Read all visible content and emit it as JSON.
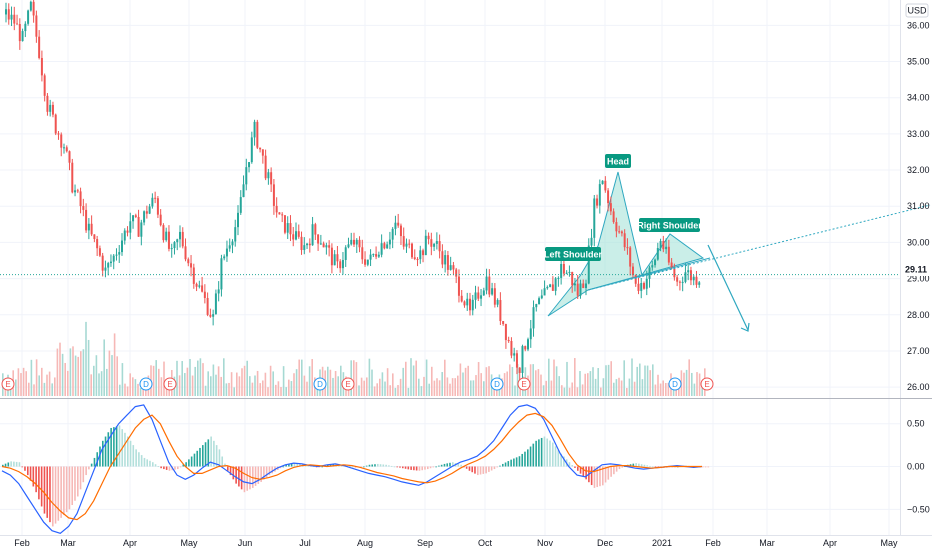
{
  "currency": "USD",
  "last_price": "29.11",
  "colors": {
    "up": "#26a69a",
    "down": "#ef5350",
    "vol_up": "#a6d9d3",
    "vol_down": "#f6b8b6",
    "pattern_fill": "#9fe0d6",
    "label_bg": "#089981",
    "trend": "#2fa8c0",
    "macd": "#2962ff",
    "signal": "#ff6d00",
    "hist_up": "#26a69a",
    "hist_down": "#ef5350",
    "event_e": "#ef5350",
    "event_d": "#2196f3"
  },
  "chart_data": {
    "type": "candlestick",
    "ylim": [
      25.7,
      36.7
    ],
    "y_ticks": [
      26.0,
      27.0,
      28.0,
      29.0,
      30.0,
      31.0,
      32.0,
      33.0,
      34.0,
      35.0,
      36.0
    ],
    "y_tick_labels": [
      "26.00",
      "27.00",
      "28.00",
      "29.00",
      "30.00",
      "31.00",
      "32.00",
      "33.00",
      "34.00",
      "35.00",
      "36.00"
    ],
    "x_labels": [
      "Feb",
      "Mar",
      "Apr",
      "May",
      "Jun",
      "Jul",
      "Aug",
      "Sep",
      "Oct",
      "Nov",
      "Dec",
      "2021",
      "Feb",
      "Mar",
      "Apr",
      "May"
    ],
    "closes": [
      36.3,
      36.1,
      35.6,
      36.5,
      35.3,
      33.8,
      33.2,
      32.7,
      31.6,
      31.0,
      30.3,
      29.8,
      29.2,
      29.6,
      30.1,
      30.6,
      30.4,
      30.9,
      31.2,
      30.3,
      29.6,
      30.2,
      29.5,
      28.9,
      28.4,
      27.9,
      29.4,
      30.1,
      30.6,
      32.1,
      33.1,
      32.3,
      31.4,
      30.6,
      30.4,
      30.1,
      29.9,
      30.3,
      30.1,
      29.7,
      29.3,
      29.8,
      30.0,
      29.6,
      29.5,
      29.9,
      30.1,
      30.5,
      29.9,
      29.8,
      29.7,
      30.1,
      29.9,
      29.5,
      29.1,
      28.6,
      28.0,
      28.6,
      29.0,
      28.4,
      27.8,
      27.0,
      26.6,
      27.5,
      28.2,
      28.5,
      28.8,
      29.3,
      29.1,
      28.6,
      29.1,
      31.0,
      31.8,
      30.9,
      30.3,
      29.7,
      28.8,
      28.9,
      29.3,
      30.1,
      29.4,
      28.9,
      29.2,
      29.0,
      29.1
    ],
    "annotations": [
      "Left Shoulder",
      "Head",
      "Right Shoulder"
    ],
    "events": [
      {
        "label": "E",
        "kind": "earnings"
      },
      {
        "label": "D",
        "kind": "dividend"
      },
      {
        "label": "E",
        "kind": "earnings"
      },
      {
        "label": "D",
        "kind": "dividend"
      },
      {
        "label": "E",
        "kind": "earnings"
      },
      {
        "label": "D",
        "kind": "dividend"
      },
      {
        "label": "E",
        "kind": "earnings"
      },
      {
        "label": "D",
        "kind": "dividend"
      },
      {
        "label": "E",
        "kind": "earnings"
      }
    ],
    "macd": {
      "ylim": [
        -0.8,
        0.8
      ],
      "y_ticks": [
        0.5,
        0.0,
        -0.5
      ],
      "y_tick_labels": [
        "0.50",
        "0.00",
        "−0.50"
      ],
      "hist": [
        0.02,
        0.06,
        0.05,
        -0.1,
        -0.3,
        -0.55,
        -0.7,
        -0.6,
        -0.5,
        -0.35,
        -0.1,
        0.1,
        0.3,
        0.45,
        0.48,
        0.35,
        0.2,
        0.1,
        0.05,
        -0.02,
        -0.05,
        -0.03,
        0.05,
        0.15,
        0.25,
        0.35,
        0.2,
        -0.05,
        -0.2,
        -0.3,
        -0.25,
        -0.18,
        -0.1,
        -0.04,
        0.02,
        0.04,
        0.03,
        0.01,
        -0.01,
        0.02,
        0.03,
        0.01,
        0.0,
        -0.01,
        0.02,
        0.03,
        0.02,
        0.0,
        -0.02,
        -0.04,
        -0.05,
        -0.03,
        0.0,
        0.03,
        0.05,
        0.02,
        -0.05,
        -0.1,
        -0.08,
        -0.03,
        0.03,
        0.08,
        0.12,
        0.2,
        0.3,
        0.35,
        0.28,
        0.15,
        0.05,
        -0.05,
        -0.15,
        -0.25,
        -0.22,
        -0.12,
        -0.03,
        0.02,
        0.04,
        0.02,
        0.0,
        -0.02,
        -0.01,
        0.0,
        0.01,
        0.0,
        -0.01
      ],
      "macd": [
        -0.05,
        -0.1,
        -0.2,
        -0.35,
        -0.5,
        -0.65,
        -0.75,
        -0.78,
        -0.7,
        -0.55,
        -0.3,
        -0.05,
        0.2,
        0.35,
        0.5,
        0.6,
        0.7,
        0.72,
        0.55,
        0.3,
        0.05,
        -0.1,
        -0.15,
        -0.1,
        -0.02,
        0.05,
        0.02,
        -0.05,
        -0.12,
        -0.18,
        -0.2,
        -0.15,
        -0.08,
        -0.02,
        0.02,
        0.04,
        0.03,
        0.01,
        0.0,
        0.02,
        0.03,
        0.01,
        -0.02,
        -0.05,
        -0.08,
        -0.1,
        -0.12,
        -0.15,
        -0.18,
        -0.2,
        -0.22,
        -0.18,
        -0.12,
        -0.06,
        0.0,
        0.05,
        0.08,
        0.12,
        0.2,
        0.3,
        0.45,
        0.6,
        0.7,
        0.72,
        0.68,
        0.55,
        0.35,
        0.15,
        0.0,
        -0.1,
        -0.12,
        -0.05,
        0.02,
        0.03,
        0.02,
        0.0,
        -0.02,
        -0.03,
        -0.02,
        -0.01,
        0.0,
        0.01,
        0.0,
        -0.01,
        0.0
      ],
      "signal": [
        0.0,
        -0.02,
        -0.06,
        -0.12,
        -0.2,
        -0.3,
        -0.42,
        -0.52,
        -0.6,
        -0.62,
        -0.55,
        -0.4,
        -0.2,
        0.0,
        0.15,
        0.3,
        0.45,
        0.55,
        0.6,
        0.5,
        0.3,
        0.12,
        0.0,
        -0.08,
        -0.08,
        -0.04,
        0.0,
        0.01,
        -0.02,
        -0.08,
        -0.13,
        -0.15,
        -0.13,
        -0.1,
        -0.05,
        -0.01,
        0.01,
        0.02,
        0.01,
        0.0,
        0.01,
        0.02,
        0.01,
        -0.01,
        -0.04,
        -0.07,
        -0.09,
        -0.11,
        -0.14,
        -0.16,
        -0.18,
        -0.19,
        -0.17,
        -0.13,
        -0.08,
        -0.02,
        0.03,
        0.07,
        0.12,
        0.2,
        0.3,
        0.42,
        0.52,
        0.6,
        0.62,
        0.58,
        0.48,
        0.32,
        0.15,
        0.02,
        -0.05,
        -0.06,
        -0.03,
        0.0,
        0.01,
        0.01,
        0.0,
        -0.01,
        -0.02,
        -0.01,
        0.0,
        0.0,
        0.0,
        0.0,
        0.0
      ]
    }
  }
}
